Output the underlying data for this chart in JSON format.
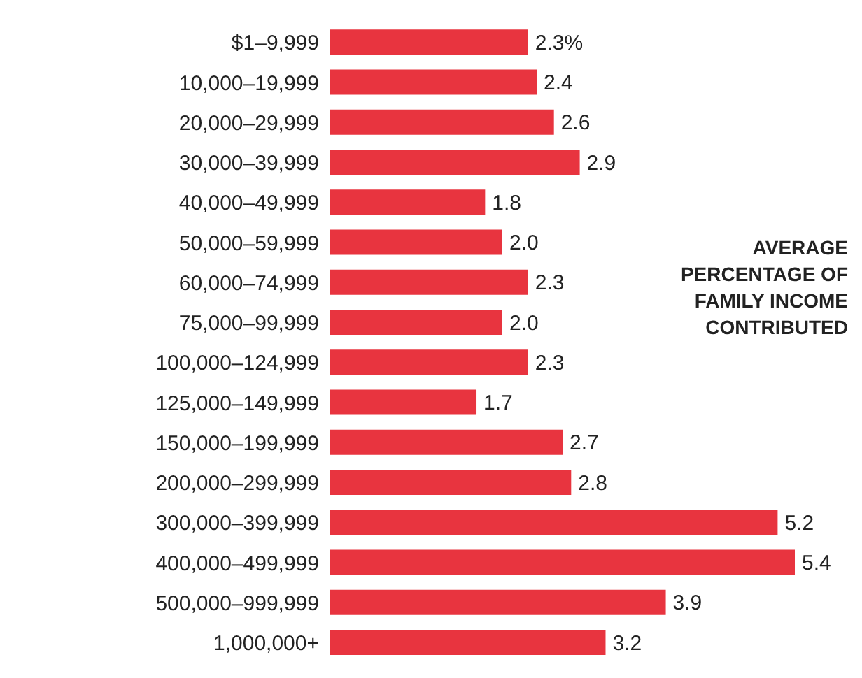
{
  "chart_data": {
    "type": "bar",
    "orientation": "horizontal",
    "categories": [
      "$1–9,999",
      "10,000–19,999",
      "20,000–29,999",
      "30,000–39,999",
      "40,000–49,999",
      "50,000–59,999",
      "60,000–74,999",
      "75,000–99,999",
      "100,000–124,999",
      "125,000–149,999",
      "150,000–199,999",
      "200,000–299,999",
      "300,000–399,999",
      "400,000–499,999",
      "500,000–999,999",
      "1,000,000+"
    ],
    "values": [
      2.3,
      2.4,
      2.6,
      2.9,
      1.8,
      2.0,
      2.3,
      2.0,
      2.3,
      1.7,
      2.7,
      2.8,
      5.2,
      5.4,
      3.9,
      3.2
    ],
    "value_labels": [
      "2.3%",
      "2.4",
      "2.6",
      "2.9",
      "1.8",
      "2.0",
      "2.3",
      "2.0",
      "2.3",
      "1.7",
      "2.7",
      "2.8",
      "5.2",
      "5.4",
      "3.9",
      "3.2"
    ],
    "color": "#e8343f",
    "annotations": [
      "AVERAGE PERCENTAGE OF FAMILY INCOME CONTRIBUTED"
    ]
  }
}
